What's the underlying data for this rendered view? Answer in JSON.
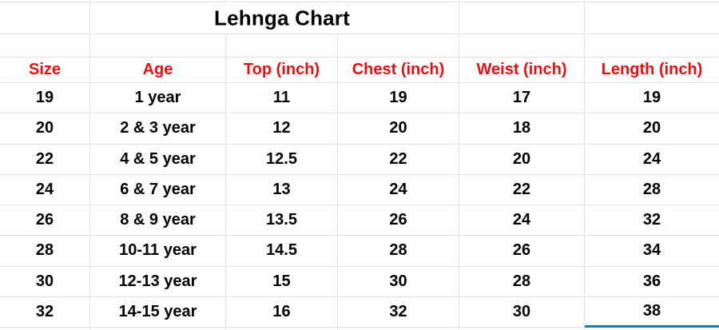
{
  "sheet": {
    "title": "Lehnga Chart",
    "headers": [
      "Size",
      "Age",
      "Top (inch)",
      "Chest (inch)",
      "Weist (inch)",
      "Length (inch)"
    ],
    "rows": [
      [
        "19",
        "1 year",
        "11",
        "19",
        "17",
        "19"
      ],
      [
        "20",
        "2 & 3 year",
        "12",
        "20",
        "18",
        "20"
      ],
      [
        "22",
        "4 & 5 year",
        "12.5",
        "22",
        "20",
        "24"
      ],
      [
        "24",
        "6 & 7 year",
        "13",
        "24",
        "22",
        "28"
      ],
      [
        "26",
        "8 & 9 year",
        "13.5",
        "26",
        "24",
        "32"
      ],
      [
        "28",
        "10-11 year",
        "14.5",
        "28",
        "26",
        "34"
      ],
      [
        "30",
        "12-13 year",
        "15",
        "30",
        "28",
        "36"
      ],
      [
        "32",
        "14-15 year",
        "16",
        "32",
        "30",
        "38"
      ]
    ],
    "colors": {
      "header_text": "#ea0e0e",
      "body_text": "#000000",
      "gridline": "#e2e3e4",
      "selection_underline": "#2874b5",
      "background": "#ffffff"
    }
  },
  "chart_data": {
    "type": "table",
    "title": "Lehnga Chart",
    "columns": [
      "Size",
      "Age",
      "Top (inch)",
      "Chest (inch)",
      "Weist (inch)",
      "Length (inch)"
    ],
    "rows": [
      [
        19,
        "1 year",
        11,
        19,
        17,
        19
      ],
      [
        20,
        "2 & 3 year",
        12,
        20,
        18,
        20
      ],
      [
        22,
        "4 & 5 year",
        12.5,
        22,
        20,
        24
      ],
      [
        24,
        "6 & 7 year",
        13,
        24,
        22,
        28
      ],
      [
        26,
        "8 & 9 year",
        13.5,
        26,
        24,
        32
      ],
      [
        28,
        "10-11 year",
        14.5,
        28,
        26,
        34
      ],
      [
        30,
        "12-13 year",
        15,
        30,
        28,
        36
      ],
      [
        32,
        "14-15 year",
        16,
        32,
        30,
        38
      ]
    ]
  }
}
